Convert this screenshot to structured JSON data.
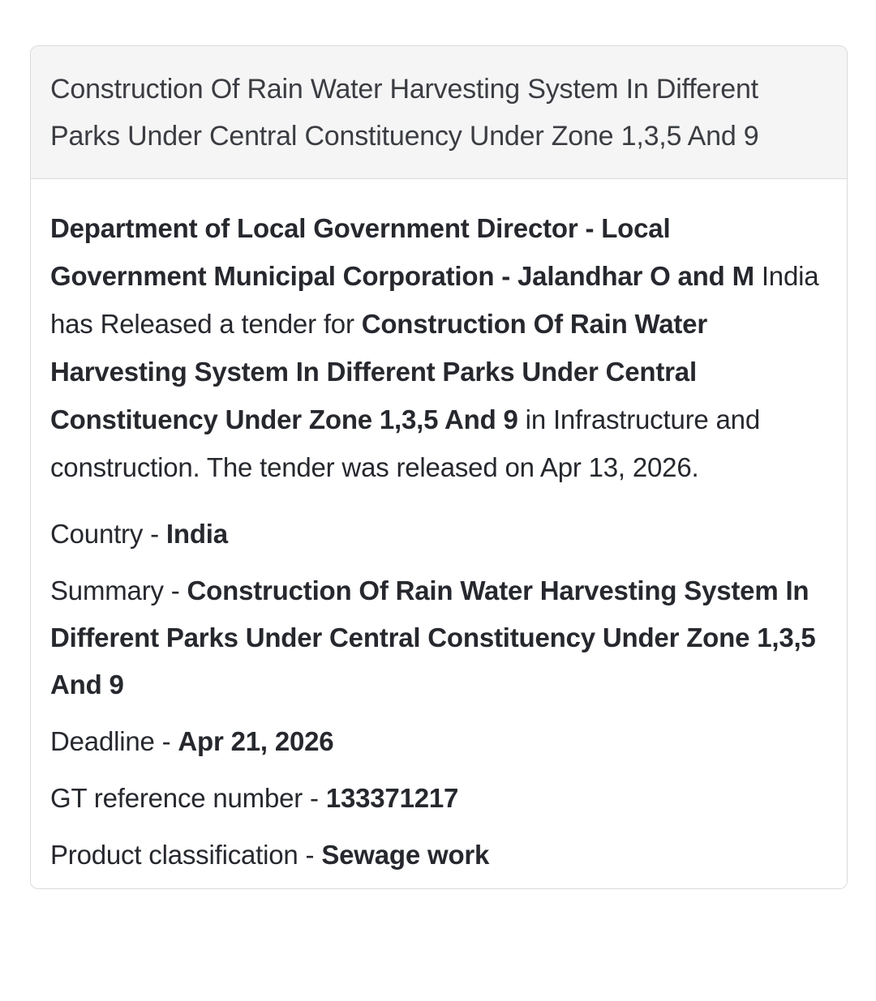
{
  "panel": {
    "colors": {
      "heading_bg": "#f5f5f6",
      "border": "#d9dadd",
      "heading_text": "#3b3d42",
      "body_text": "#26282e"
    },
    "heading": {
      "title": "Construction Of Rain Water Harvesting System In Different Parks Under Central Constituency Under Zone 1,3,5 And 9"
    },
    "body": {
      "intro": {
        "authority": "Department of Local Government Director - Local Government Municipal Corporation - Jalandhar O and M",
        "connector": " India has Released a tender for ",
        "tender_title": "Construction Of Rain Water Harvesting System In Different Parks Under Central Constituency Under Zone 1,3,5 And 9",
        "tail": " in Infrastructure and construction. The tender was released on Apr 13, 2026."
      },
      "fields": [
        {
          "label": "Country",
          "separator": " - ",
          "value": "India"
        },
        {
          "label": "Summary",
          "separator": " - ",
          "value": "Construction Of Rain Water Harvesting System In Different Parks Under Central Constituency Under Zone 1,3,5 And 9"
        },
        {
          "label": "Deadline",
          "separator": " - ",
          "value": "Apr 21, 2026"
        },
        {
          "label": "GT reference number",
          "separator": " - ",
          "value": "133371217"
        },
        {
          "label": "Product classification",
          "separator": " - ",
          "value": "Sewage work"
        }
      ]
    }
  }
}
